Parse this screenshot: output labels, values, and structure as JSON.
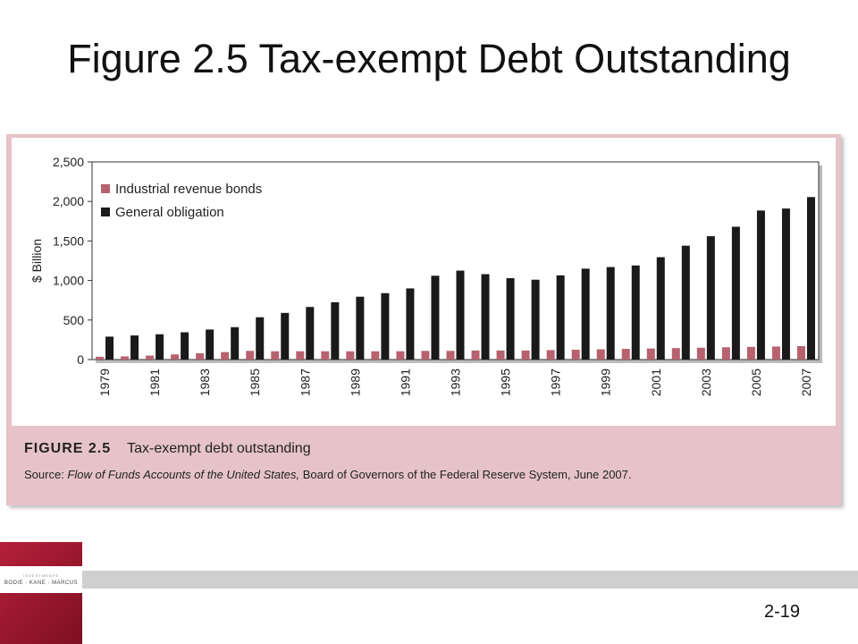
{
  "slide": {
    "title": "Figure 2.5 Tax-exempt Debt Outstanding",
    "page_number": "2-19"
  },
  "caption": {
    "label": "FIGURE 2.5",
    "text": "Tax-exempt debt outstanding",
    "source_prefix": "Source: ",
    "source_italic": "Flow of Funds Accounts of the United States,",
    "source_rest": " Board of Governors of the Federal Reserve System, June 2007."
  },
  "logo": {
    "authors": "BODIE · KANE · MARCUS",
    "series": "INVESTMENTS"
  },
  "chart_data": {
    "type": "bar",
    "ylabel": "$ Billion",
    "ylim": [
      0,
      2500
    ],
    "yticks": [
      0,
      500,
      1000,
      1500,
      2000,
      2500
    ],
    "yticklabels": [
      "0",
      "500",
      "1,000",
      "1,500",
      "2,000",
      "2,500"
    ],
    "categories": [
      "1979",
      "1980",
      "1981",
      "1982",
      "1983",
      "1984",
      "1985",
      "1986",
      "1987",
      "1988",
      "1989",
      "1990",
      "1991",
      "1992",
      "1993",
      "1994",
      "1995",
      "1996",
      "1997",
      "1998",
      "1999",
      "2000",
      "2001",
      "2002",
      "2003",
      "2004",
      "2005",
      "2006",
      "2007"
    ],
    "xticklabels": [
      "1979",
      "",
      "1981",
      "",
      "1983",
      "",
      "1985",
      "",
      "1987",
      "",
      "1989",
      "",
      "1991",
      "",
      "1993",
      "",
      "1995",
      "",
      "1997",
      "",
      "1999",
      "",
      "2001",
      "",
      "2003",
      "",
      "2005",
      "",
      "2007"
    ],
    "legend_position": "top-left",
    "series": [
      {
        "name": "Industrial revenue bonds",
        "color": "#b8626f",
        "values": [
          35,
          40,
          50,
          65,
          80,
          95,
          110,
          105,
          105,
          105,
          105,
          105,
          105,
          110,
          110,
          115,
          115,
          115,
          120,
          125,
          130,
          135,
          140,
          145,
          150,
          155,
          160,
          165,
          170
        ]
      },
      {
        "name": "General obligation",
        "color": "#1a1a1a",
        "values": [
          290,
          305,
          320,
          345,
          380,
          410,
          535,
          590,
          665,
          725,
          795,
          840,
          900,
          1060,
          1125,
          1080,
          1030,
          1010,
          1065,
          1150,
          1170,
          1190,
          1295,
          1440,
          1560,
          1680,
          1885,
          1910,
          2055
        ]
      }
    ]
  }
}
